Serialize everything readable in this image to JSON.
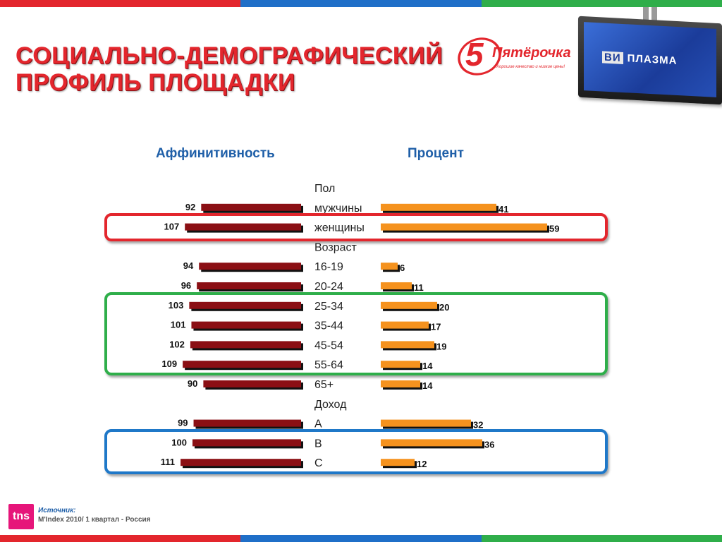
{
  "slide": {
    "title": "СОЦИАЛЬНО-ДЕМОГРАФИЧЕСКИЙ\nПРОФИЛЬ ПЛОЩАДКИ",
    "logo_brand": "Пятёрочка",
    "logo_number": "5",
    "logo_slogan": "Хорошие качество и низкие цены!",
    "tv_brand_vi": "ВИ",
    "tv_brand_name": "ПЛАЗМА",
    "source_label": "Источник:",
    "source_text": "M'Index 2010/ 1 квартал - Россия",
    "tns_logo": "tns",
    "colors": {
      "title_red": "#e3262d",
      "header_blue": "#1f5fa8",
      "affinity_bar": "#8b0f14",
      "percent_bar": "#f5921e",
      "frame_red": "#e3262d",
      "frame_green": "#2fae4a",
      "frame_blue": "#1f78c8"
    }
  },
  "chart_data": {
    "type": "bar",
    "orientation": "horizontal-butterfly",
    "column_headers": {
      "left": "Аффинитивность",
      "right": "Процент"
    },
    "rows": [
      {
        "label": "Пол",
        "group": true
      },
      {
        "label": "мужчины",
        "affinity": 92,
        "percent": 41
      },
      {
        "label": "женщины",
        "affinity": 107,
        "percent": 59
      },
      {
        "label": "Возраст",
        "group": true
      },
      {
        "label": "16-19",
        "affinity": 94,
        "percent": 6
      },
      {
        "label": "20-24",
        "affinity": 96,
        "percent": 11
      },
      {
        "label": "25-34",
        "affinity": 103,
        "percent": 20
      },
      {
        "label": "35-44",
        "affinity": 101,
        "percent": 17
      },
      {
        "label": "45-54",
        "affinity": 102,
        "percent": 19
      },
      {
        "label": "55-64",
        "affinity": 109,
        "percent": 14
      },
      {
        "label": "65+",
        "affinity": 90,
        "percent": 14
      },
      {
        "label": "Доход",
        "group": true
      },
      {
        "label": "A",
        "affinity": 99,
        "percent": 32
      },
      {
        "label": "B",
        "affinity": 100,
        "percent": 36
      },
      {
        "label": "C",
        "affinity": 111,
        "percent": 12
      }
    ],
    "highlight_groups": [
      {
        "color": "red",
        "rows": [
          "женщины"
        ]
      },
      {
        "color": "green",
        "rows": [
          "25-34",
          "35-44",
          "45-54",
          "55-64"
        ]
      },
      {
        "color": "blue",
        "rows": [
          "B",
          "C"
        ]
      }
    ]
  }
}
